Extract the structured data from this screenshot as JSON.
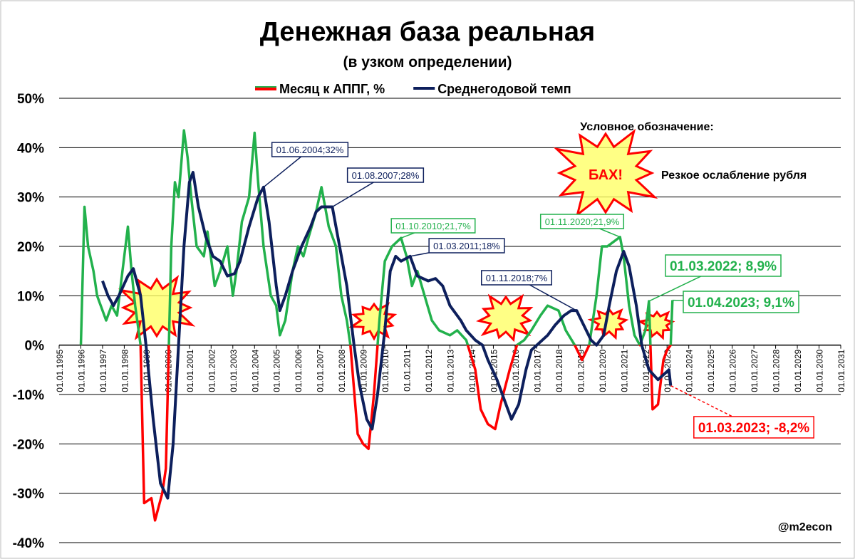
{
  "chart_data": {
    "type": "line",
    "title": "Денежная база реальная",
    "subtitle": "(в узком определении)",
    "xlim": [
      "01.01.1995",
      "01.01.2031"
    ],
    "xticks": [
      "01.01.1995",
      "01.01.1996",
      "01.01.1997",
      "01.01.1998",
      "01.01.1999",
      "01.01.2000",
      "01.01.2001",
      "01.01.2002",
      "01.01.2003",
      "01.01.2004",
      "01.01.2005",
      "01.01.2006",
      "01.01.2007",
      "01.01.2008",
      "01.01.2009",
      "01.01.2010",
      "01.01.2011",
      "01.01.2012",
      "01.01.2013",
      "01.01.2014",
      "01.01.2015",
      "01.01.2016",
      "01.01.2017",
      "01.01.2018",
      "01.01.2019",
      "01.01.2020",
      "01.01.2021",
      "01.01.2022",
      "01.01.2023",
      "01.01.2024",
      "01.01.2025",
      "01.01.2026",
      "01.01.2027",
      "01.01.2028",
      "01.01.2029",
      "01.01.2030",
      "01.01.2031"
    ],
    "ylim": [
      -40,
      50
    ],
    "yticks": [
      {
        "value": -40,
        "label": "-40%"
      },
      {
        "value": -30,
        "label": "-30%"
      },
      {
        "value": -20,
        "label": "-20%"
      },
      {
        "value": -10,
        "label": "-10%"
      },
      {
        "value": 0,
        "label": "0%"
      },
      {
        "value": 10,
        "label": "10%"
      },
      {
        "value": 20,
        "label": "20%"
      },
      {
        "value": 30,
        "label": "30%"
      },
      {
        "value": 40,
        "label": "40%"
      },
      {
        "value": 50,
        "label": "50%"
      }
    ],
    "grid": true,
    "series": [
      {
        "name": "Месяц к АППГ, %",
        "color": "#22b14c",
        "negative_color": "#ff0000",
        "x": [
          "01.01.1996",
          "01.03.1996",
          "01.05.1996",
          "01.08.1996",
          "01.10.1996",
          "01.03.1997",
          "01.06.1997",
          "01.09.1997",
          "01.01.1998",
          "01.03.1998",
          "01.05.1998",
          "01.07.1998",
          "01.10.1998",
          "01.12.1998",
          "01.04.1999",
          "01.06.1999",
          "01.10.1999",
          "01.12.1999",
          "01.03.2000",
          "01.05.2000",
          "01.07.2000",
          "01.10.2000",
          "01.12.2000",
          "01.02.2001",
          "01.05.2001",
          "01.09.2001",
          "01.11.2001",
          "01.03.2002",
          "01.06.2002",
          "01.10.2002",
          "01.01.2003",
          "01.03.2003",
          "01.06.2003",
          "01.10.2003",
          "01.01.2004",
          "01.03.2004",
          "01.06.2004",
          "01.10.2004",
          "01.01.2005",
          "01.03.2005",
          "01.06.2005",
          "01.10.2005",
          "01.01.2006",
          "01.04.2006",
          "01.07.2006",
          "01.11.2006",
          "01.02.2007",
          "01.04.2007",
          "01.06.2007",
          "01.10.2007",
          "01.01.2008",
          "01.04.2008",
          "01.06.2008",
          "01.10.2008",
          "01.01.2009",
          "01.04.2009",
          "01.07.2009",
          "01.10.2009",
          "01.01.2010",
          "01.05.2010",
          "01.10.2010",
          "01.01.2011",
          "01.04.2011",
          "01.07.2011",
          "01.11.2011",
          "01.03.2012",
          "01.07.2012",
          "01.01.2013",
          "01.05.2013",
          "01.10.2013",
          "01.03.2014",
          "01.06.2014",
          "01.10.2014",
          "01.02.2015",
          "01.05.2015",
          "01.10.2015",
          "01.02.2016",
          "01.06.2016",
          "01.10.2016",
          "01.03.2017",
          "01.07.2017",
          "01.01.2018",
          "01.05.2018",
          "01.10.2018",
          "01.02.2019",
          "01.06.2019",
          "01.10.2019",
          "01.01.2020",
          "01.04.2020",
          "01.11.2020",
          "01.01.2021",
          "01.04.2021",
          "01.07.2021",
          "01.10.2021",
          "01.01.2022",
          "01.03.2022",
          "01.05.2022",
          "01.08.2022",
          "01.11.2022",
          "01.01.2023",
          "01.03.2023",
          "01.04.2023"
        ],
        "values": [
          0,
          28,
          20,
          15,
          10,
          5,
          8,
          6,
          18,
          24,
          15,
          8,
          0,
          -32,
          -31,
          -35.5,
          -30,
          -25,
          20,
          33,
          30,
          43.5,
          38,
          30,
          20,
          18,
          23,
          12,
          15,
          20,
          10,
          15,
          25,
          30,
          43,
          33,
          20,
          10,
          8,
          2,
          5,
          15,
          20,
          18,
          22,
          27,
          32,
          28,
          24,
          20,
          10,
          5,
          0,
          -18,
          -20,
          -21,
          -10,
          5,
          17,
          20,
          21.7,
          18,
          12,
          15,
          10,
          5,
          3,
          2,
          3,
          1,
          -5,
          -13,
          -16,
          -17,
          -12,
          -5,
          0,
          1,
          3,
          6,
          8,
          7,
          3,
          0,
          -3,
          0,
          10,
          20,
          20,
          21.9,
          18,
          8,
          2,
          0,
          3,
          8.9,
          -13,
          -12,
          -3,
          -1,
          0,
          9.1
        ]
      },
      {
        "name": "Среднегодовой темп",
        "color": "#0d1f5c",
        "x": [
          "01.01.1997",
          "01.04.1997",
          "01.07.1997",
          "01.10.1997",
          "01.03.1998",
          "01.06.1998",
          "01.10.1998",
          "01.01.1999",
          "01.05.1999",
          "01.09.1999",
          "01.01.2000",
          "01.04.2000",
          "01.07.2000",
          "01.10.2000",
          "01.01.2001",
          "01.03.2001",
          "01.06.2001",
          "01.10.2001",
          "01.02.2002",
          "01.06.2002",
          "01.10.2002",
          "01.02.2003",
          "01.05.2003",
          "01.10.2003",
          "01.03.2004",
          "01.06.2004",
          "01.09.2004",
          "01.01.2005",
          "01.03.2005",
          "01.06.2005",
          "01.10.2005",
          "01.03.2006",
          "01.08.2006",
          "01.11.2006",
          "01.02.2007",
          "01.08.2007",
          "01.11.2007",
          "01.04.2008",
          "01.08.2008",
          "01.11.2008",
          "01.03.2009",
          "01.06.2009",
          "01.09.2009",
          "01.01.2010",
          "01.04.2010",
          "01.07.2010",
          "01.10.2010",
          "01.03.2011",
          "01.07.2011",
          "01.01.2012",
          "01.05.2012",
          "01.09.2012",
          "01.01.2013",
          "01.07.2013",
          "01.10.2013",
          "01.03.2014",
          "01.07.2014",
          "01.10.2014",
          "01.03.2015",
          "01.08.2015",
          "01.11.2015",
          "01.03.2016",
          "01.07.2016",
          "01.10.2016",
          "01.01.2017",
          "01.07.2017",
          "01.11.2017",
          "01.04.2018",
          "01.08.2018",
          "01.11.2018",
          "01.03.2019",
          "01.07.2019",
          "01.10.2019",
          "01.02.2020",
          "01.05.2020",
          "01.09.2020",
          "01.01.2021",
          "01.04.2021",
          "01.08.2021",
          "01.11.2021",
          "01.03.2022",
          "01.08.2022",
          "01.11.2022",
          "01.02.2023",
          "01.03.2023"
        ],
        "values": [
          13,
          10,
          8,
          10,
          14,
          15.5,
          10,
          0,
          -15,
          -28,
          -31,
          -20,
          0,
          20,
          33,
          35,
          28,
          22,
          18,
          17,
          14,
          14.5,
          17,
          24,
          30,
          32,
          25,
          12,
          7,
          10,
          15,
          20,
          24,
          27,
          28,
          28,
          22,
          12,
          0,
          -8,
          -15,
          -17,
          -10,
          3,
          15,
          18,
          17,
          18,
          14,
          13,
          13.5,
          12,
          8,
          5,
          3,
          1,
          0,
          -3,
          -7,
          -12,
          -15,
          -12,
          -5,
          -1,
          0,
          2,
          4,
          6,
          7,
          7,
          4,
          1,
          0,
          2,
          8,
          15,
          19,
          16,
          8,
          0,
          -5,
          -7,
          -6,
          -5,
          -8.2
        ]
      }
    ],
    "annotations": [
      {
        "text": "01.06.2004;32%",
        "series": 1,
        "point": 25
      },
      {
        "text": "01.08.2007;28%",
        "series": 1,
        "point": 35
      },
      {
        "text": "01.10.2010;21,7%",
        "series": 0,
        "point": 60
      },
      {
        "text": "01.03.2011;18%",
        "series": 1,
        "point": 47
      },
      {
        "text": "01.11.2018;7%",
        "series": 1,
        "point": 69
      },
      {
        "text": "01.11.2020;21,9%",
        "series": 0,
        "point": 89
      },
      {
        "text": "01.03.2022; 8,9%",
        "series": 0,
        "point": 95
      },
      {
        "text": "01.04.2023; 9,1%",
        "series": 0,
        "point": 101
      },
      {
        "text": "01.03.2023; -8,2%",
        "series": 1,
        "point": 84
      }
    ],
    "legend_key_title": "Условное обозначение:",
    "legend_key_symbol": "БАХ!",
    "legend_key_text": "Резкое ослабление рубля",
    "credit": "@m2econ"
  }
}
